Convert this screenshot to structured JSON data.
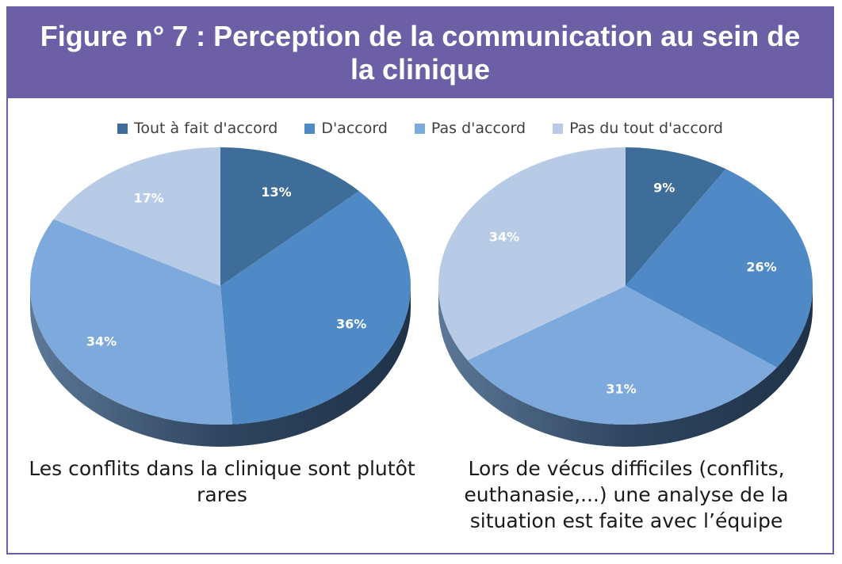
{
  "title": "Figure n° 7 : Perception de la communication au sein de la clinique",
  "legend": [
    {
      "label": "Tout à fait d'accord",
      "color": "#3f6d9a"
    },
    {
      "label": "D'accord",
      "color": "#4f8ac6"
    },
    {
      "label": "Pas d'accord",
      "color": "#7ea9dc"
    },
    {
      "label": "Pas du tout d'accord",
      "color": "#b7cbe7"
    }
  ],
  "chart_data": [
    {
      "type": "pie",
      "caption": "Les conflits dans la clinique sont plutôt rares",
      "categories": [
        "Tout à fait d'accord",
        "D'accord",
        "Pas d'accord",
        "Pas du tout d'accord"
      ],
      "values": [
        13,
        36,
        34,
        17
      ],
      "labels": [
        "13%",
        "36%",
        "34%",
        "17%"
      ]
    },
    {
      "type": "pie",
      "caption": "Lors de vécus difficiles (conflits, euthanasie,...) une analyse de la situation est faite avec l’équipe",
      "categories": [
        "Tout à fait d'accord",
        "D'accord",
        "Pas d'accord",
        "Pas du tout d'accord"
      ],
      "values": [
        9,
        26,
        31,
        34
      ],
      "labels": [
        "9%",
        "26%",
        "31%",
        "34%"
      ]
    }
  ]
}
